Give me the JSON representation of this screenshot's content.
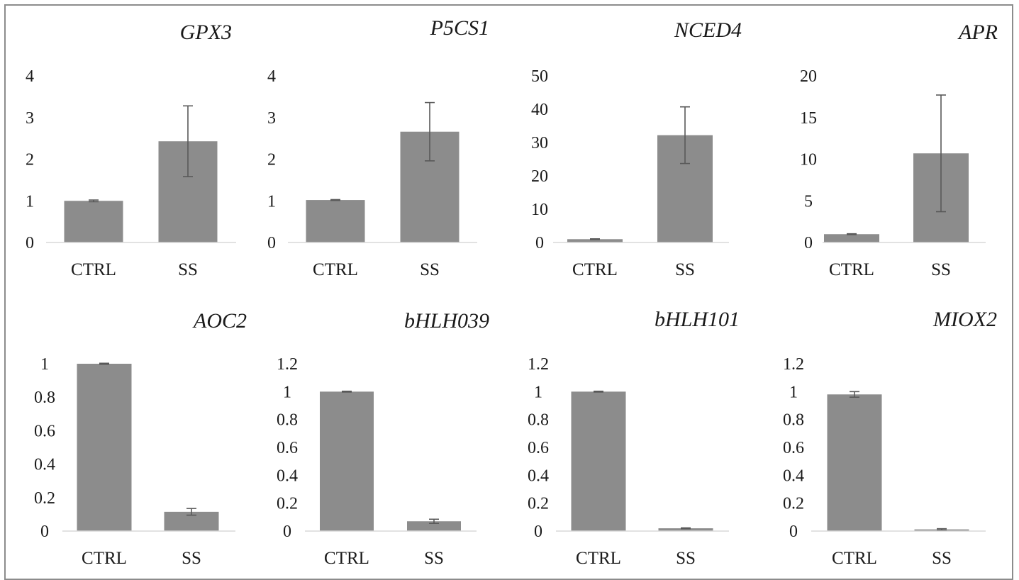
{
  "chart_data": [
    {
      "type": "bar",
      "title": "GPX3",
      "categories": [
        "CTRL",
        "SS"
      ],
      "values": [
        1.0,
        2.43
      ],
      "errors": [
        0.02,
        0.85
      ],
      "ylim": [
        0,
        4
      ],
      "yticks": [
        "0",
        "1",
        "2",
        "3",
        "4"
      ]
    },
    {
      "type": "bar",
      "title": "P5CS1",
      "categories": [
        "CTRL",
        "SS"
      ],
      "values": [
        1.02,
        2.66
      ],
      "errors": [
        0.01,
        0.7
      ],
      "ylim": [
        0,
        4
      ],
      "yticks": [
        "0",
        "1",
        "2",
        "3",
        "4"
      ]
    },
    {
      "type": "bar",
      "title": "NCED4",
      "categories": [
        "CTRL",
        "SS"
      ],
      "values": [
        1.0,
        32.2
      ],
      "errors": [
        0.1,
        8.5
      ],
      "ylim": [
        0,
        50
      ],
      "yticks": [
        "0",
        "10",
        "20",
        "30",
        "40",
        "50"
      ]
    },
    {
      "type": "bar",
      "title": "APR",
      "categories": [
        "CTRL",
        "SS"
      ],
      "values": [
        1.0,
        10.7
      ],
      "errors": [
        0.05,
        7.0
      ],
      "ylim": [
        0,
        20
      ],
      "yticks": [
        "0",
        "5",
        "10",
        "15",
        "20"
      ]
    },
    {
      "type": "bar",
      "title": "AOC2",
      "categories": [
        "CTRL",
        "SS"
      ],
      "values": [
        1.0,
        0.115
      ],
      "errors": [
        0.003,
        0.02
      ],
      "ylim": [
        0,
        1
      ],
      "yticks": [
        "0",
        "0.2",
        "0.4",
        "0.6",
        "0.8",
        "1"
      ]
    },
    {
      "type": "bar",
      "title": "bHLH039",
      "categories": [
        "CTRL",
        "SS"
      ],
      "values": [
        1.0,
        0.07
      ],
      "errors": [
        0.003,
        0.015
      ],
      "ylim": [
        0,
        1.2
      ],
      "yticks": [
        "0",
        "0.2",
        "0.4",
        "0.6",
        "0.8",
        "1",
        "1.2"
      ]
    },
    {
      "type": "bar",
      "title": "bHLH101",
      "categories": [
        "CTRL",
        "SS"
      ],
      "values": [
        1.0,
        0.02
      ],
      "errors": [
        0.003,
        0.003
      ],
      "ylim": [
        0,
        1.2
      ],
      "yticks": [
        "0",
        "0.2",
        "0.4",
        "0.6",
        "0.8",
        "1",
        "1.2"
      ]
    },
    {
      "type": "bar",
      "title": "MIOX2",
      "categories": [
        "CTRL",
        "SS"
      ],
      "values": [
        0.98,
        0.012
      ],
      "errors": [
        0.02,
        0.005
      ],
      "ylim": [
        0,
        1.2
      ],
      "yticks": [
        "0",
        "0.2",
        "0.4",
        "0.6",
        "0.8",
        "1",
        "1.2"
      ]
    }
  ],
  "colors": {
    "bar": "#8c8c8c",
    "error": "#595959",
    "axis": "#d9d9d9",
    "text": "#1a1a1a"
  }
}
